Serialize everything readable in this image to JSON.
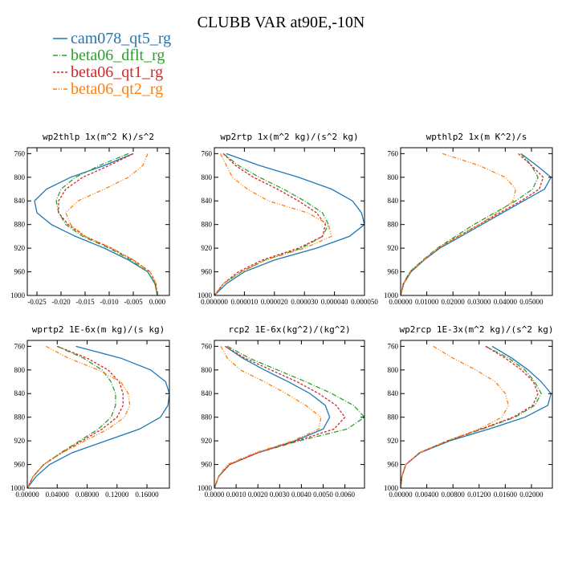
{
  "title": "CLUBB VAR at90E,-10N",
  "series": [
    {
      "name": "cam078_qt5_rg",
      "color": "#1f77b4",
      "dash": ""
    },
    {
      "name": "beta06_dflt_rg",
      "color": "#2ca02c",
      "dash": "6,2,1,2"
    },
    {
      "name": "beta06_qt1_rg",
      "color": "#d62728",
      "dash": "3,2"
    },
    {
      "name": "beta06_qt2_rg",
      "color": "#ff7f0e",
      "dash": "5,2,1,2,1,2"
    }
  ],
  "chart_data": [
    {
      "type": "line",
      "title": "wp2thlp  1x(m^2 K)/s^2",
      "ylim": [
        1000,
        750
      ],
      "yticks": [
        760,
        800,
        840,
        880,
        920,
        960,
        1000
      ],
      "xlim": [
        -0.027,
        0.0025
      ],
      "xticks": [
        -0.025,
        -0.02,
        -0.015,
        -0.01,
        -0.005,
        0.0
      ],
      "xtick_labels": [
        "-0.025",
        "-0.020",
        "-0.015",
        "-0.010",
        "-0.005",
        "0.000"
      ],
      "y": [
        760,
        780,
        800,
        820,
        840,
        860,
        880,
        900,
        920,
        940,
        960,
        980,
        1000
      ],
      "series_x": [
        [
          -0.005,
          -0.011,
          -0.018,
          -0.023,
          -0.0255,
          -0.025,
          -0.022,
          -0.017,
          -0.011,
          -0.006,
          -0.002,
          -0.0005,
          0.0
        ],
        [
          -0.006,
          -0.012,
          -0.017,
          -0.02,
          -0.021,
          -0.0205,
          -0.019,
          -0.0155,
          -0.01,
          -0.0055,
          -0.002,
          -0.0005,
          0.0
        ],
        [
          -0.005,
          -0.01,
          -0.0155,
          -0.019,
          -0.0205,
          -0.0205,
          -0.0185,
          -0.015,
          -0.0095,
          -0.005,
          -0.0015,
          -0.0003,
          0.0
        ],
        [
          -0.002,
          -0.003,
          -0.006,
          -0.011,
          -0.0165,
          -0.019,
          -0.018,
          -0.015,
          -0.0095,
          -0.005,
          -0.0015,
          -0.0003,
          0.0
        ]
      ]
    },
    {
      "type": "line",
      "title": "wp2rtp  1x(m^2 kg)/(s^2 kg)",
      "ylim": [
        1000,
        750
      ],
      "yticks": [
        760,
        800,
        840,
        880,
        920,
        960,
        1000
      ],
      "xlim": [
        0,
        5e-05
      ],
      "xticks": [
        0,
        1e-05,
        2e-05,
        3e-05,
        4e-05,
        5e-05
      ],
      "xtick_labels": [
        "0.000000",
        "0.000010",
        "0.000020",
        "0.000030",
        "0.000040",
        "0.000050"
      ],
      "y": [
        760,
        780,
        800,
        820,
        840,
        860,
        880,
        900,
        920,
        940,
        960,
        980,
        1000
      ],
      "series_x": [
        [
          4e-06,
          1.5e-05,
          2.8e-05,
          3.9e-05,
          4.6e-05,
          4.9e-05,
          5e-05,
          4.5e-05,
          3.4e-05,
          2e-05,
          1e-05,
          4e-06,
          0.0
        ],
        [
          3e-06,
          8e-06,
          1.5e-05,
          2.3e-05,
          3e-05,
          3.6e-05,
          3.8e-05,
          3.6e-05,
          2.9e-05,
          1.7e-05,
          9e-06,
          3e-06,
          0.0
        ],
        [
          3e-06,
          7e-06,
          1.3e-05,
          2.1e-05,
          2.8e-05,
          3.4e-05,
          3.7e-05,
          3.6e-05,
          2.8e-05,
          1.6e-05,
          8e-06,
          3e-06,
          0.0
        ],
        [
          2e-06,
          4e-06,
          6e-06,
          1.1e-05,
          1.8e-05,
          3.1e-05,
          3.8e-05,
          3.9e-05,
          3e-05,
          1.7e-05,
          9e-06,
          3e-06,
          0.0
        ]
      ]
    },
    {
      "type": "line",
      "title": "wpthlp2  1x(m K^2)/s",
      "ylim": [
        1000,
        750
      ],
      "yticks": [
        760,
        800,
        840,
        880,
        920,
        960,
        1000
      ],
      "xlim": [
        0,
        0.058
      ],
      "xticks": [
        0,
        0.01,
        0.02,
        0.03,
        0.04,
        0.05
      ],
      "xtick_labels": [
        "0.00000",
        "0.01000",
        "0.02000",
        "0.03000",
        "0.04000",
        "0.05000"
      ],
      "y": [
        760,
        780,
        800,
        820,
        840,
        860,
        880,
        900,
        920,
        940,
        960,
        980,
        1000
      ],
      "series_x": [
        [
          0.046,
          0.052,
          0.0575,
          0.055,
          0.047,
          0.039,
          0.031,
          0.023,
          0.015,
          0.009,
          0.004,
          0.0012,
          0.0
        ],
        [
          0.046,
          0.05,
          0.0525,
          0.0505,
          0.044,
          0.036,
          0.028,
          0.021,
          0.014,
          0.0085,
          0.0035,
          0.001,
          0.0
        ],
        [
          0.045,
          0.05,
          0.0545,
          0.053,
          0.046,
          0.038,
          0.03,
          0.022,
          0.0145,
          0.0088,
          0.0037,
          0.0011,
          0.0
        ],
        [
          0.016,
          0.03,
          0.04,
          0.044,
          0.043,
          0.037,
          0.03,
          0.022,
          0.0145,
          0.0088,
          0.0037,
          0.0011,
          0.0
        ]
      ]
    },
    {
      "type": "line",
      "title": "wprtp2  1E-6x(m kg)/(s kg)",
      "ylim": [
        1000,
        750
      ],
      "yticks": [
        760,
        800,
        840,
        880,
        920,
        960,
        1000
      ],
      "xlim": [
        0,
        0.19
      ],
      "xticks": [
        0,
        0.04,
        0.08,
        0.12,
        0.16
      ],
      "xtick_labels": [
        "0.00000",
        "0.04000",
        "0.08000",
        "0.12000",
        "0.16000"
      ],
      "y": [
        760,
        780,
        800,
        820,
        840,
        860,
        880,
        900,
        920,
        940,
        960,
        980,
        1000
      ],
      "series_x": [
        [
          0.065,
          0.125,
          0.165,
          0.185,
          0.19,
          0.188,
          0.178,
          0.15,
          0.105,
          0.06,
          0.03,
          0.012,
          0.0
        ],
        [
          0.04,
          0.075,
          0.1,
          0.112,
          0.118,
          0.118,
          0.112,
          0.095,
          0.07,
          0.045,
          0.022,
          0.008,
          0.0
        ],
        [
          0.04,
          0.08,
          0.108,
          0.123,
          0.128,
          0.128,
          0.12,
          0.1,
          0.073,
          0.046,
          0.022,
          0.008,
          0.0
        ],
        [
          0.025,
          0.055,
          0.095,
          0.125,
          0.135,
          0.137,
          0.13,
          0.108,
          0.077,
          0.047,
          0.022,
          0.008,
          0.0
        ]
      ]
    },
    {
      "type": "line",
      "title": "rcp2  1E-6x(kg^2)/(kg^2)",
      "ylim": [
        1000,
        750
      ],
      "yticks": [
        760,
        800,
        840,
        880,
        920,
        960,
        1000
      ],
      "xlim": [
        0,
        0.0069
      ],
      "xticks": [
        0,
        0.001,
        0.002,
        0.003,
        0.004,
        0.005,
        0.006
      ],
      "xtick_labels": [
        "0.0000",
        "0.0010",
        "0.0020",
        "0.0030",
        "0.0040",
        "0.0050",
        "0.0060"
      ],
      "y": [
        760,
        780,
        800,
        820,
        840,
        860,
        880,
        900,
        920,
        940,
        960,
        980,
        1000
      ],
      "series_x": [
        [
          0.0005,
          0.0013,
          0.0023,
          0.0034,
          0.0044,
          0.0051,
          0.0053,
          0.005,
          0.0037,
          0.002,
          0.0007,
          0.0002,
          0.0
        ],
        [
          0.0006,
          0.0016,
          0.0029,
          0.0042,
          0.0054,
          0.0064,
          0.0069,
          0.0061,
          0.0039,
          0.002,
          0.0007,
          0.0002,
          0.0
        ],
        [
          0.0005,
          0.0014,
          0.0026,
          0.0038,
          0.0048,
          0.0056,
          0.006,
          0.0055,
          0.0038,
          0.002,
          0.0007,
          0.0002,
          0.0
        ],
        [
          0.0003,
          0.0006,
          0.0012,
          0.0023,
          0.0033,
          0.0042,
          0.0049,
          0.0048,
          0.0036,
          0.0019,
          0.0006,
          0.0002,
          0.0
        ]
      ]
    },
    {
      "type": "line",
      "title": "wp2rcp  1E-3x(m^2 kg)/(s^2 kg)",
      "ylim": [
        1000,
        750
      ],
      "yticks": [
        760,
        800,
        840,
        880,
        920,
        960,
        1000
      ],
      "xlim": [
        0,
        0.0232
      ],
      "xticks": [
        0,
        0.004,
        0.008,
        0.012,
        0.016,
        0.02
      ],
      "xtick_labels": [
        "0.00000",
        "0.00400",
        "0.00800",
        "0.01200",
        "0.01600",
        "0.02000"
      ],
      "y": [
        760,
        780,
        800,
        820,
        840,
        860,
        880,
        900,
        920,
        940,
        960,
        980,
        1000
      ],
      "series_x": [
        [
          0.014,
          0.017,
          0.0195,
          0.0215,
          0.023,
          0.0225,
          0.019,
          0.0135,
          0.0075,
          0.003,
          0.0008,
          0.0002,
          0.0
        ],
        [
          0.013,
          0.0165,
          0.019,
          0.0205,
          0.0215,
          0.0205,
          0.0175,
          0.0125,
          0.0072,
          0.0029,
          0.0008,
          0.0002,
          0.0
        ],
        [
          0.013,
          0.016,
          0.0185,
          0.0203,
          0.021,
          0.0202,
          0.0172,
          0.0123,
          0.0071,
          0.0029,
          0.0008,
          0.0002,
          0.0
        ],
        [
          0.005,
          0.008,
          0.0115,
          0.0145,
          0.016,
          0.0165,
          0.0155,
          0.012,
          0.0071,
          0.0029,
          0.0008,
          0.0002,
          0.0
        ]
      ]
    }
  ]
}
